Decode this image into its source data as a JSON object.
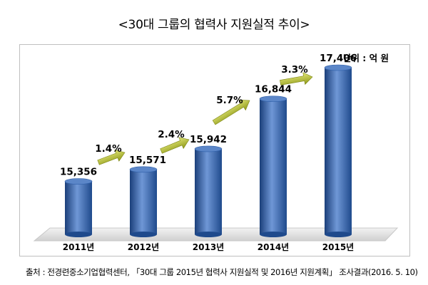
{
  "title": "<30대 그룹의 협력사 지원실적 추이>",
  "unit_label": "단위 : 억 원",
  "source": "출처 : 전경련중소기업협력센터, 「30대 그룹 2015년 협력사 지원실적 및 2016년 지원계획」 조사결과(2016. 5. 10)",
  "colors": {
    "bar": "#2f5fa8",
    "bar_dark": "#1b3f7a",
    "bar_light": "#6f97d6",
    "arrow": "#8f9a1a",
    "arrow_light": "#d6dc59"
  },
  "chart_data": {
    "type": "bar",
    "categories": [
      "2011년",
      "2012년",
      "2013년",
      "2014년",
      "2015년"
    ],
    "values": [
      15356,
      15571,
      15942,
      16844,
      17406
    ],
    "value_labels": [
      "15,356",
      "15,571",
      "15,942",
      "16,844",
      "17,406"
    ],
    "growth_labels": [
      "1.4%",
      "2.4%",
      "5.7%",
      "3.3%"
    ],
    "title": "<30대 그룹의 협력사 지원실적 추이>",
    "xlabel": "",
    "ylabel": "",
    "unit": "단위 : 억 원",
    "grid": false,
    "legend": "none"
  }
}
